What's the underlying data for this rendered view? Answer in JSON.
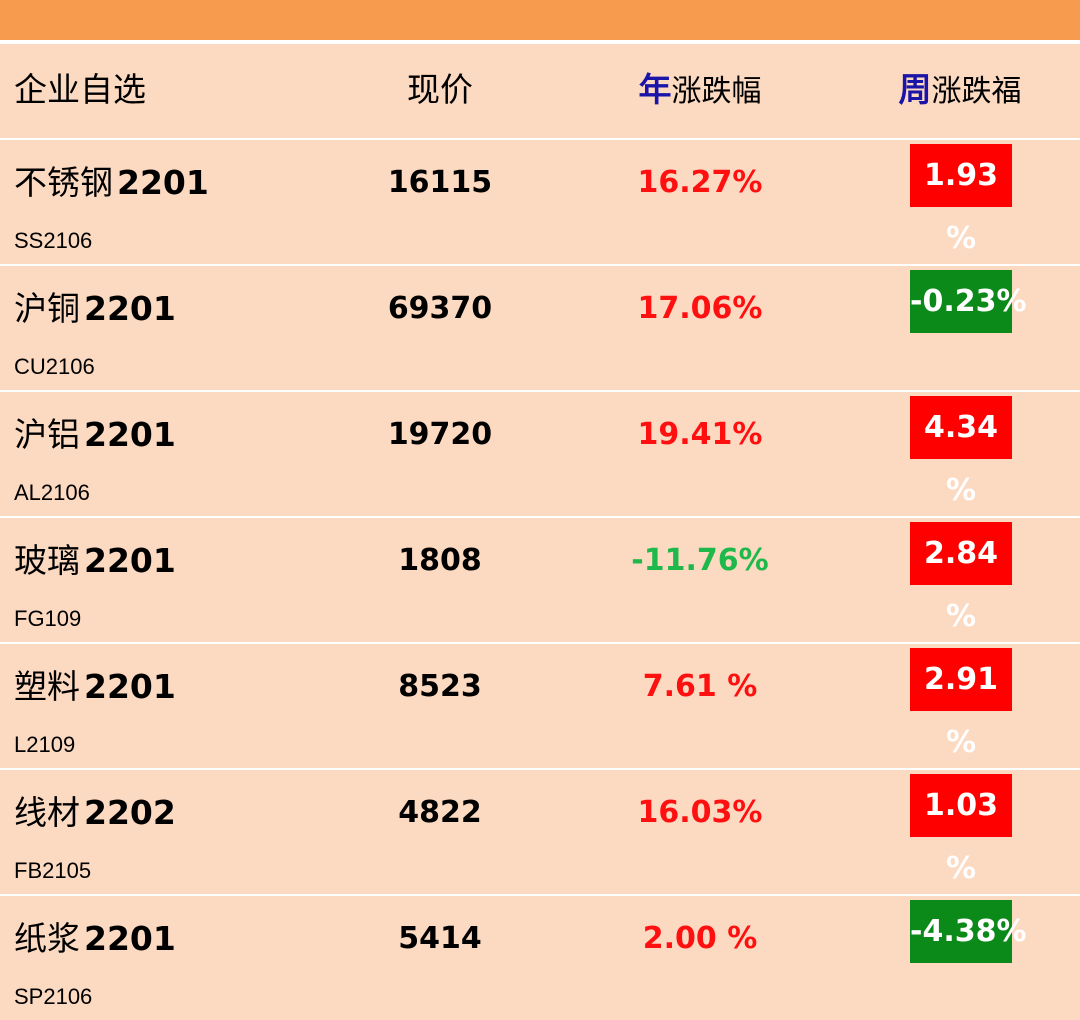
{
  "header": {
    "name": "企业自选",
    "price": "现价",
    "year_accent": "年",
    "year_rest": "涨跌幅",
    "week_accent": "周",
    "week_rest": "涨跌福"
  },
  "colors": {
    "up": "#ff1010",
    "down": "#1fb84a",
    "week_up_bg": "#ff0000",
    "week_down_bg": "#0b8a1a"
  },
  "rows": [
    {
      "name": "不锈钢",
      "contract": "2201",
      "code": "SS2106",
      "price": "16115",
      "year": "16.27%",
      "year_dir": "up",
      "week": "1.93 %",
      "week_dir": "up"
    },
    {
      "name": "沪铜",
      "contract": "2201",
      "code": "CU2106",
      "price": "69370",
      "year": "17.06%",
      "year_dir": "up",
      "week": "-0.23%",
      "week_dir": "down"
    },
    {
      "name": "沪铝",
      "contract": "2201",
      "code": "AL2106",
      "price": "19720",
      "year": "19.41%",
      "year_dir": "up",
      "week": "4.34 %",
      "week_dir": "up"
    },
    {
      "name": "玻璃",
      "contract": "2201",
      "code": "FG109",
      "price": "1808",
      "year": "-11.76%",
      "year_dir": "down",
      "week": "2.84 %",
      "week_dir": "up"
    },
    {
      "name": "塑料",
      "contract": "2201",
      "code": "L2109",
      "price": "8523",
      "year": "7.61 %",
      "year_dir": "up",
      "week": "2.91 %",
      "week_dir": "up"
    },
    {
      "name": "线材",
      "contract": "2202",
      "code": "FB2105",
      "price": "4822",
      "year": "16.03%",
      "year_dir": "up",
      "week": "1.03 %",
      "week_dir": "up"
    },
    {
      "name": "纸浆",
      "contract": "2201",
      "code": "SP2106",
      "price": "5414",
      "year": "2.00 %",
      "year_dir": "up",
      "week": "-4.38%",
      "week_dir": "down"
    }
  ]
}
